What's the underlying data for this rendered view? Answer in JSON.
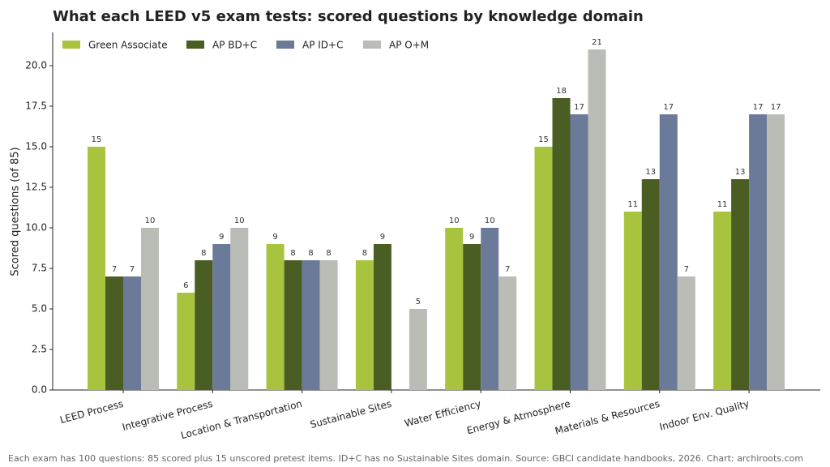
{
  "chart_data": {
    "type": "bar",
    "title": "What each LEED v5 exam tests: scored questions by knowledge domain",
    "y_label": "Scored questions (of 85)",
    "footnote": "Each exam has 100 questions: 85 scored plus 15 unscored pretest items. ID+C has no Sustainable Sites domain. Source: GBCI candidate handbooks, 2026. Chart: archiroots.com",
    "categories": [
      "LEED Process",
      "Integrative Process",
      "Location & Transportation",
      "Sustainable Sites",
      "Water Efficiency",
      "Energy & Atmosphere",
      "Materials & Resources",
      "Indoor Env. Quality"
    ],
    "series": [
      {
        "name": "Green Associate",
        "color": "#a8c43f",
        "values": [
          15,
          6,
          9,
          8,
          10,
          15,
          11,
          11
        ]
      },
      {
        "name": "AP BD+C",
        "color": "#4a5e23",
        "values": [
          7,
          8,
          8,
          9,
          9,
          18,
          13,
          13
        ]
      },
      {
        "name": "AP ID+C",
        "color": "#6b7a99",
        "values": [
          7,
          9,
          8,
          null,
          10,
          17,
          17,
          17
        ]
      },
      {
        "name": "AP O+M",
        "color": "#babdb5",
        "values": [
          10,
          10,
          8,
          5,
          7,
          21,
          7,
          17
        ]
      }
    ],
    "ylim": [
      0,
      22.05
    ],
    "yticks": [
      {
        "value": 0,
        "label": "0.0"
      },
      2.5,
      {
        "value": 5,
        "label": "5.0"
      },
      7.5,
      {
        "value": 10,
        "label": "10.0"
      },
      12.5,
      {
        "value": 15,
        "label": "15.0"
      },
      17.5,
      {
        "value": 20,
        "label": "20.0"
      }
    ],
    "legend": "upper left",
    "grid": false
  }
}
